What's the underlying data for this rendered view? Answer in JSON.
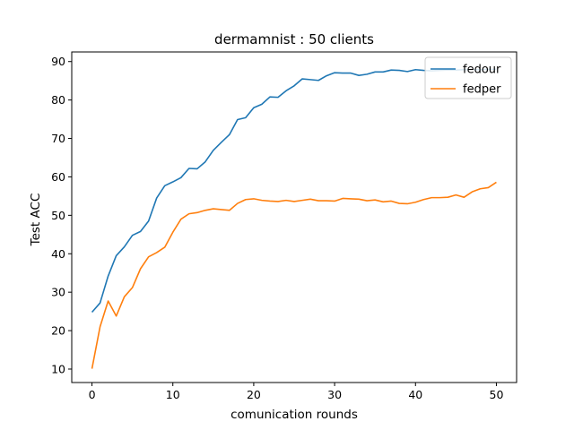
{
  "chart_data": {
    "type": "line",
    "title": "dermamnist : 50 clients",
    "xlabel": "comunication rounds",
    "ylabel": "Test ACC",
    "xlim": [
      -2.5,
      52.5
    ],
    "ylim": [
      6.5,
      92.5
    ],
    "xticks": [
      0,
      10,
      20,
      30,
      40,
      50
    ],
    "yticks": [
      10,
      20,
      30,
      40,
      50,
      60,
      70,
      80,
      90
    ],
    "legend_position": "top-right",
    "grid": false,
    "x": [
      0,
      1,
      2,
      3,
      4,
      5,
      6,
      7,
      8,
      9,
      10,
      11,
      12,
      13,
      14,
      15,
      16,
      17,
      18,
      19,
      20,
      21,
      22,
      23,
      24,
      25,
      26,
      27,
      28,
      29,
      30,
      31,
      32,
      33,
      34,
      35,
      36,
      37,
      38,
      39,
      40,
      41,
      42,
      43,
      44,
      45,
      46,
      47,
      48,
      49,
      50
    ],
    "series": [
      {
        "name": "fedour",
        "color": "#1f77b4",
        "values": [
          24.8,
          27.2,
          34.2,
          39.5,
          41.8,
          44.8,
          45.8,
          48.5,
          54.5,
          57.7,
          58.7,
          59.8,
          62.2,
          62.1,
          63.9,
          66.9,
          69.0,
          71.0,
          74.9,
          75.4,
          78.0,
          78.9,
          80.8,
          80.7,
          82.4,
          83.7,
          85.5,
          85.3,
          85.1,
          86.3,
          87.1,
          87.0,
          87.0,
          86.4,
          86.7,
          87.3,
          87.3,
          87.8,
          87.7,
          87.4,
          87.9,
          87.7,
          87.6,
          87.7,
          87.8,
          87.8,
          87.9,
          87.9,
          87.9,
          88.0,
          88.0
        ]
      },
      {
        "name": "fedper",
        "color": "#ff7f0e",
        "values": [
          10.1,
          21.0,
          27.7,
          23.8,
          28.8,
          31.2,
          36.1,
          39.2,
          40.3,
          41.7,
          45.6,
          49.0,
          50.4,
          50.7,
          51.3,
          51.7,
          51.5,
          51.3,
          53.1,
          54.1,
          54.3,
          53.9,
          53.7,
          53.6,
          53.9,
          53.6,
          53.9,
          54.2,
          53.8,
          53.8,
          53.7,
          54.4,
          54.3,
          54.2,
          53.8,
          54.0,
          53.5,
          53.7,
          53.1,
          53.0,
          53.4,
          54.1,
          54.6,
          54.6,
          54.7,
          55.3,
          54.7,
          56.1,
          56.9,
          57.2,
          58.6
        ]
      }
    ]
  }
}
